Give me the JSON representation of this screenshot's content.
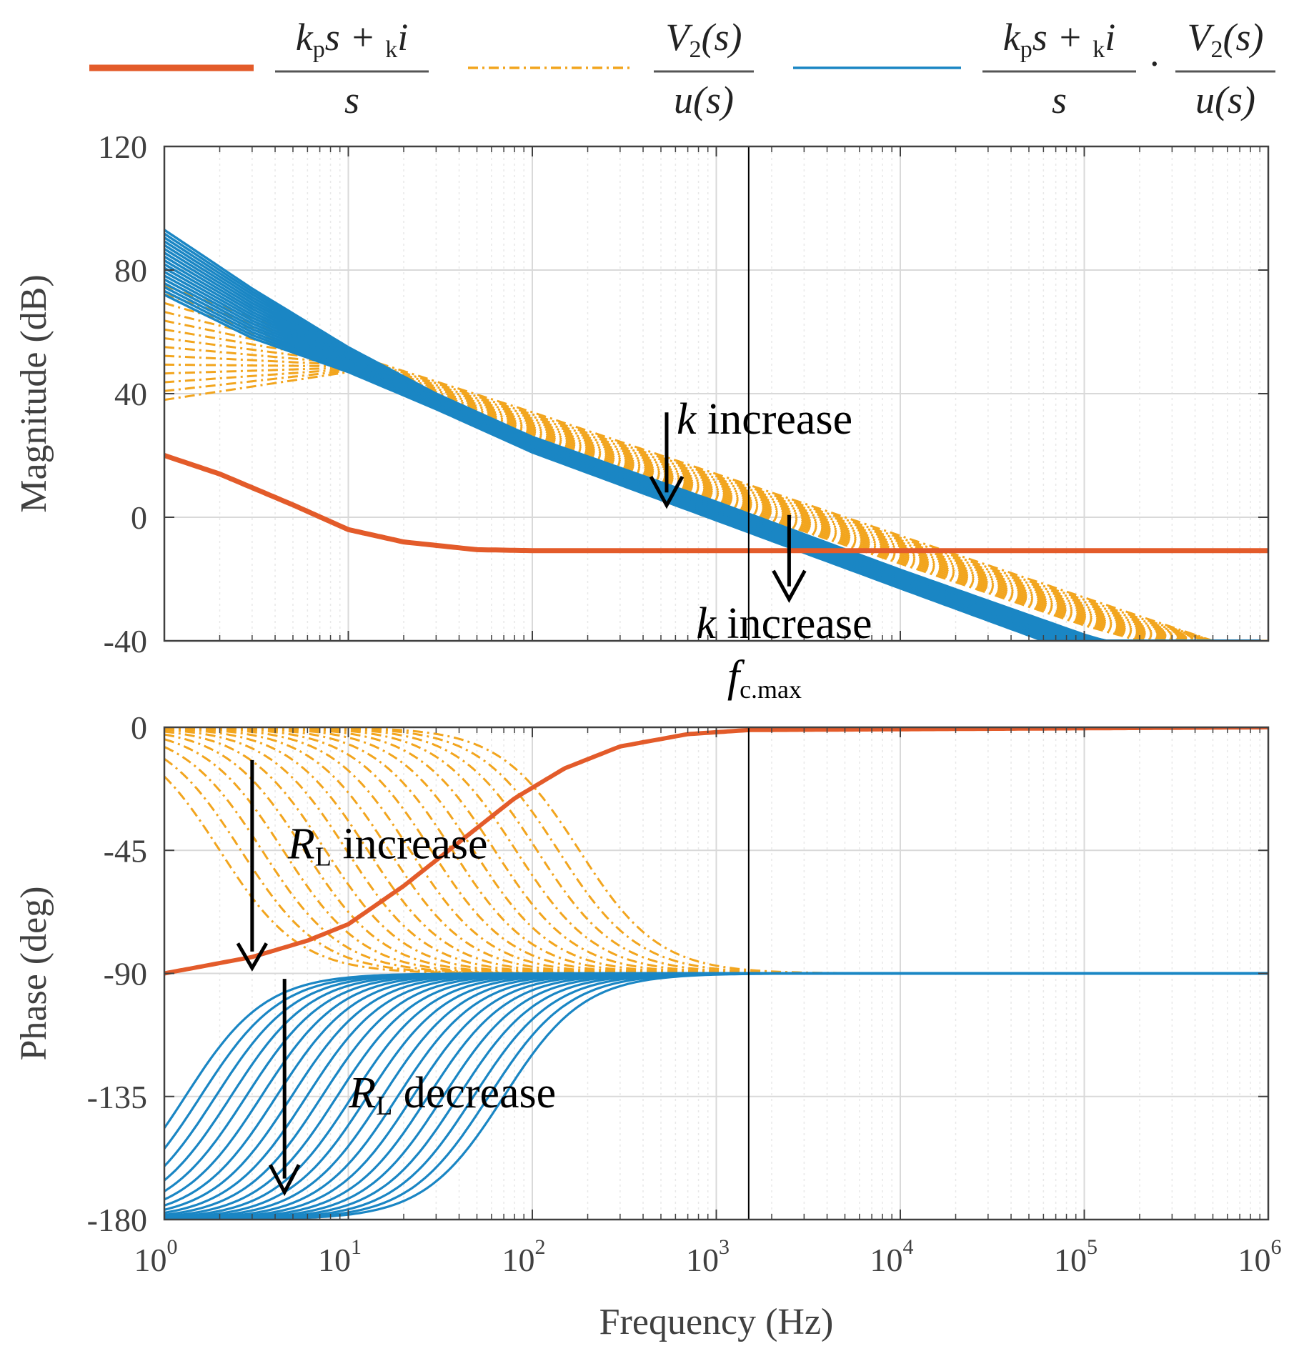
{
  "colors": {
    "pi": "#e35b2a",
    "plant": "#f2a51e",
    "loop": "#1a86c4",
    "grid": "#d9d9d9",
    "minor_grid": "#e8e8e8",
    "axis": "#404040",
    "marker": "#000000"
  },
  "legend": [
    {
      "series": "pi",
      "style": "solid",
      "numerator": [
        "k",
        "p",
        "s + ",
        "k",
        "i"
      ],
      "denominator": "s"
    },
    {
      "series": "plant",
      "style": "dash-dot",
      "numerator": [
        "V",
        "2",
        "(s)"
      ],
      "denominator": "u(s)"
    },
    {
      "series": "loop",
      "style": "solid",
      "product_left_num": [
        "k",
        "p",
        "s + ",
        "k",
        "i"
      ],
      "product_left_den": "s",
      "product_dot": "·",
      "product_right_num": [
        "V",
        "2",
        "(s)"
      ],
      "product_right_den": "u(s)"
    }
  ],
  "chart_data": [
    {
      "type": "line",
      "panel": "magnitude",
      "ylabel": "Magnitude (dB)",
      "xlabel": "",
      "xscale": "log",
      "xlim": [
        1,
        1000000
      ],
      "ylim": [
        -40,
        120
      ],
      "yticks": [
        "120",
        "80",
        "40",
        "0",
        "-40"
      ],
      "grid": true,
      "vline_x": 1500,
      "vline_label": [
        "f",
        "c.max"
      ],
      "series": [
        {
          "key": "pi",
          "points": [
            [
              1,
              20
            ],
            [
              2,
              14
            ],
            [
              5,
              4
            ],
            [
              10,
              -4
            ],
            [
              20,
              -8
            ],
            [
              50,
              -10.5
            ],
            [
              100,
              -10.8
            ],
            [
              1000,
              -10.8
            ],
            [
              1000000,
              -10.8
            ]
          ]
        },
        {
          "key": "plant",
          "band": true,
          "upper": [
            [
              1,
              75
            ],
            [
              10,
              53
            ],
            [
              100,
              34
            ],
            [
              1000,
              14
            ],
            [
              10000,
              -6
            ],
            [
              100000,
              -26
            ],
            [
              500000,
              -40
            ]
          ],
          "lower": [
            [
              1,
              38
            ],
            [
              10,
              47
            ],
            [
              100,
              25
            ],
            [
              1000,
              5
            ],
            [
              10000,
              -15
            ],
            [
              100000,
              -35
            ],
            [
              200000,
              -40
            ]
          ]
        },
        {
          "key": "loop",
          "band": true,
          "upper": [
            [
              1,
              93
            ],
            [
              3,
              74
            ],
            [
              10,
              55
            ],
            [
              30,
              40
            ],
            [
              100,
              26
            ],
            [
              1000,
              5
            ],
            [
              10000,
              -17
            ],
            [
              100000,
              -38
            ],
            [
              130000,
              -40
            ]
          ],
          "lower": [
            [
              1,
              72
            ],
            [
              3,
              58
            ],
            [
              10,
              47
            ],
            [
              30,
              35
            ],
            [
              100,
              21
            ],
            [
              1000,
              -1
            ],
            [
              10000,
              -23
            ],
            [
              60000,
              -40
            ]
          ]
        }
      ],
      "annotations": [
        {
          "text_var": "k",
          "text": " increase",
          "x": 500,
          "y": 27
        },
        {
          "text_var": "k",
          "text": " increase",
          "x": 2400,
          "y": -27
        }
      ]
    },
    {
      "type": "line",
      "panel": "phase",
      "ylabel": "Phase (deg)",
      "xlabel": "Frequency (Hz)",
      "xscale": "log",
      "xlim": [
        1,
        1000000
      ],
      "ylim": [
        -180,
        0
      ],
      "yticks": [
        "0",
        "-45",
        "-90",
        "-135",
        "-180"
      ],
      "xticks": [
        {
          "base": "10",
          "exp": "0"
        },
        {
          "base": "10",
          "exp": "1"
        },
        {
          "base": "10",
          "exp": "2"
        },
        {
          "base": "10",
          "exp": "3"
        },
        {
          "base": "10",
          "exp": "4"
        },
        {
          "base": "10",
          "exp": "5"
        },
        {
          "base": "10",
          "exp": "6"
        }
      ],
      "grid": true,
      "vline_x": 1500,
      "series": [
        {
          "key": "pi",
          "points": [
            [
              1,
              -90
            ],
            [
              3,
              -84
            ],
            [
              6,
              -78
            ],
            [
              10,
              -72
            ],
            [
              20,
              -58
            ],
            [
              40,
              -42
            ],
            [
              80,
              -26
            ],
            [
              150,
              -15
            ],
            [
              300,
              -7
            ],
            [
              700,
              -2.5
            ],
            [
              1500,
              -1
            ],
            [
              1000000,
              0
            ]
          ]
        },
        {
          "key": "plant",
          "family": true,
          "count": 18,
          "base": -90,
          "extreme": 0,
          "x_start": 1,
          "corner_from": 2,
          "corner_to": 180
        },
        {
          "key": "loop",
          "family": true,
          "count": 22,
          "base": -90,
          "extreme": -180,
          "x_start": 1,
          "corner_from": 1.3,
          "corner_to": 70
        }
      ],
      "annotations": [
        {
          "text_var": "R",
          "text_sub": "L",
          "text": " increase",
          "x": 3,
          "y": -12
        },
        {
          "text_var": "R",
          "text_sub": "L",
          "text": " decrease",
          "x": 4.5,
          "y": -94
        }
      ]
    }
  ]
}
